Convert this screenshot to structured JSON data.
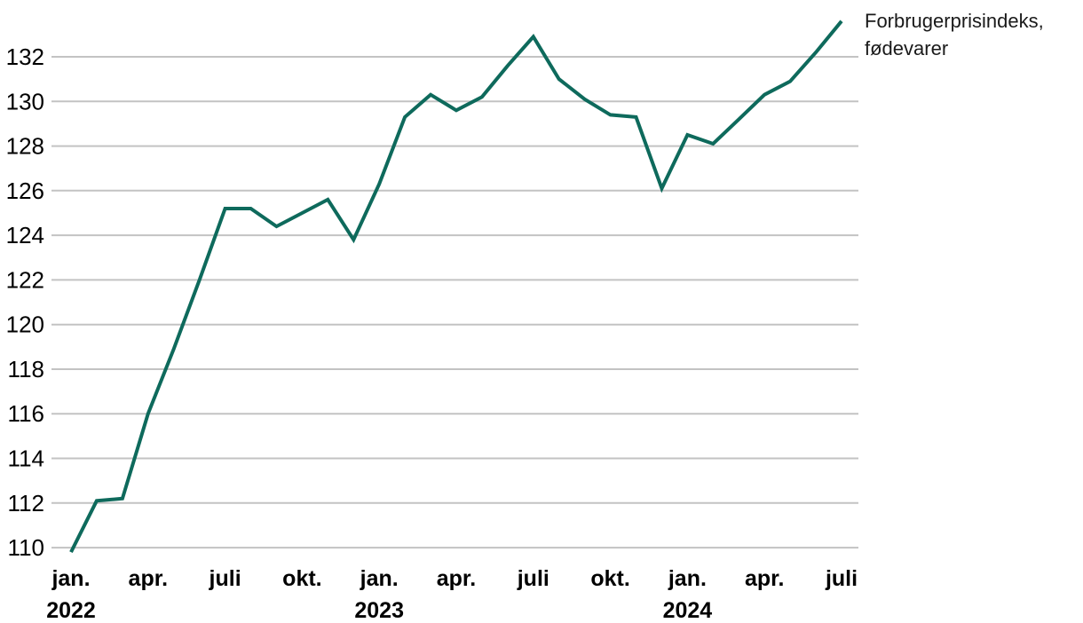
{
  "chart_data": {
    "type": "line",
    "title": "",
    "series_label": "Forbrugerprisindeks, fødevarer",
    "x": [
      "2022-01",
      "2022-02",
      "2022-03",
      "2022-04",
      "2022-05",
      "2022-06",
      "2022-07",
      "2022-08",
      "2022-09",
      "2022-10",
      "2022-11",
      "2022-12",
      "2023-01",
      "2023-02",
      "2023-03",
      "2023-04",
      "2023-05",
      "2023-06",
      "2023-07",
      "2023-08",
      "2023-09",
      "2023-10",
      "2023-11",
      "2023-12",
      "2024-01",
      "2024-02",
      "2024-03",
      "2024-04",
      "2024-05",
      "2024-06",
      "2024-07"
    ],
    "series": [
      {
        "name": "Forbrugerprisindeks, fødevarer",
        "values": [
          109.8,
          112.1,
          112.2,
          116.0,
          118.9,
          122.0,
          125.2,
          125.2,
          124.4,
          125.0,
          125.6,
          123.8,
          126.3,
          129.3,
          130.3,
          129.6,
          130.2,
          131.6,
          132.9,
          131.0,
          130.1,
          129.4,
          129.3,
          126.1,
          128.5,
          128.1,
          129.2,
          130.3,
          130.9,
          132.2,
          133.6
        ]
      }
    ],
    "y_ticks": [
      110,
      112,
      114,
      116,
      118,
      120,
      122,
      124,
      126,
      128,
      130,
      132
    ],
    "x_ticks": [
      {
        "index": 0,
        "label": "jan.",
        "year": "2022"
      },
      {
        "index": 3,
        "label": "apr."
      },
      {
        "index": 6,
        "label": "juli"
      },
      {
        "index": 9,
        "label": "okt."
      },
      {
        "index": 12,
        "label": "jan.",
        "year": "2023"
      },
      {
        "index": 15,
        "label": "apr."
      },
      {
        "index": 18,
        "label": "juli"
      },
      {
        "index": 21,
        "label": "okt."
      },
      {
        "index": 24,
        "label": "jan.",
        "year": "2024"
      },
      {
        "index": 27,
        "label": "apr."
      },
      {
        "index": 30,
        "label": "juli"
      }
    ],
    "ylim": [
      109.5,
      134
    ],
    "xlabel": "",
    "ylabel": "",
    "grid": "horizontal",
    "legend_position": "top-right",
    "colors": {
      "line": "#0e6a5c",
      "grid": "#c3c3c3",
      "axis_text": "#000000",
      "legend_text": "#1a1a1a",
      "background": "#ffffff"
    }
  }
}
